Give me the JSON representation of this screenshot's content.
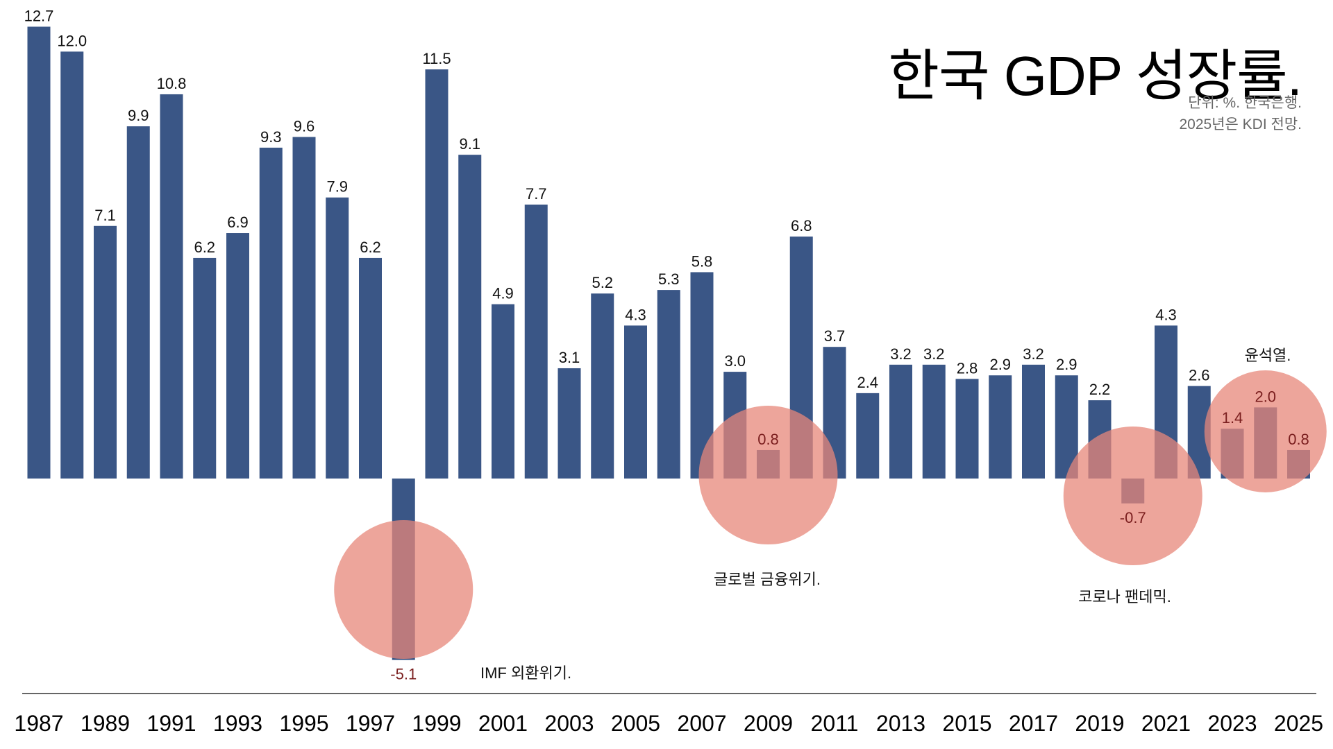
{
  "title": "한국 GDP 성장률.",
  "subtitle_lines": [
    "단위: %. 한국은행.",
    "2025년은 KDI 전망."
  ],
  "colors": {
    "bar": "#3a5686",
    "highlight_circle": "#e7877a",
    "axis": "#333333",
    "negative_label": "#7a1e1e"
  },
  "chart_data": {
    "type": "bar",
    "title": "한국 GDP 성장률.",
    "xlabel": "",
    "ylabel": "",
    "unit": "%",
    "grid": false,
    "ylim": [
      -6.2,
      13
    ],
    "x": [
      1987,
      1988,
      1989,
      1990,
      1991,
      1992,
      1993,
      1994,
      1995,
      1996,
      1997,
      1998,
      1999,
      2000,
      2001,
      2002,
      2003,
      2004,
      2005,
      2006,
      2007,
      2008,
      2009,
      2010,
      2011,
      2012,
      2013,
      2014,
      2015,
      2016,
      2017,
      2018,
      2019,
      2020,
      2021,
      2022,
      2023,
      2024,
      2025
    ],
    "values": [
      12.7,
      12.0,
      7.1,
      9.9,
      10.8,
      6.2,
      6.9,
      9.3,
      9.6,
      7.9,
      6.2,
      -5.1,
      11.5,
      9.1,
      4.9,
      7.7,
      3.1,
      5.2,
      4.3,
      5.3,
      5.8,
      3.0,
      0.8,
      6.8,
      3.7,
      2.4,
      3.2,
      3.2,
      2.8,
      2.9,
      3.2,
      2.9,
      2.2,
      -0.7,
      4.3,
      2.6,
      1.4,
      2.0,
      0.8
    ],
    "x_tick_labels": [
      "1987",
      "1989",
      "1991",
      "1993",
      "1995",
      "1997",
      "1999",
      "2001",
      "2003",
      "2005",
      "2007",
      "2009",
      "2011",
      "2013",
      "2015",
      "2017",
      "2019",
      "2021",
      "2023",
      "2025"
    ],
    "annotations": [
      {
        "text": "IMF 외환위기.",
        "year": 1998
      },
      {
        "text": "글로벌 금융위기.",
        "year": 2009
      },
      {
        "text": "코로나 팬데믹.",
        "year": 2020
      },
      {
        "text": "윤석열.",
        "year": 2024
      }
    ]
  }
}
